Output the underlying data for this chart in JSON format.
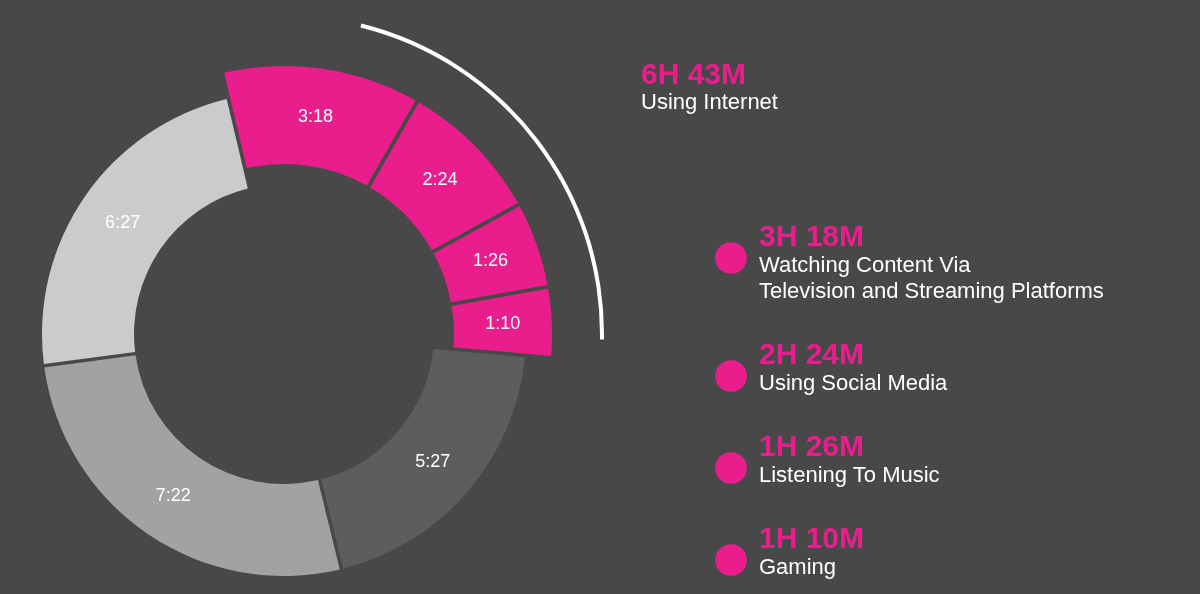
{
  "chart_data": {
    "type": "donut",
    "categories": [
      "Watching Content Via\nTelevision and Streaming Platforms",
      "Using Social Media",
      "Listening To Music",
      "Gaming",
      null,
      null,
      null
    ],
    "values": [
      198,
      144,
      86,
      70,
      327,
      442,
      387
    ],
    "value_labels": [
      "3:18",
      "2:24",
      "1:26",
      "1:10",
      "5:27",
      "7:22",
      "6:27"
    ],
    "colors": [
      "#e91e8c",
      "#e91e8c",
      "#e91e8c",
      "#e91e8c",
      "#5d5d5d",
      "#a0a2a4",
      "#c9cbcd"
    ],
    "annotations": [
      "6H 43M",
      "Using Internet",
      "3H 18M",
      "2H 24M",
      "1H 26M",
      "1H 10M"
    ],
    "legend": "right"
  }
}
